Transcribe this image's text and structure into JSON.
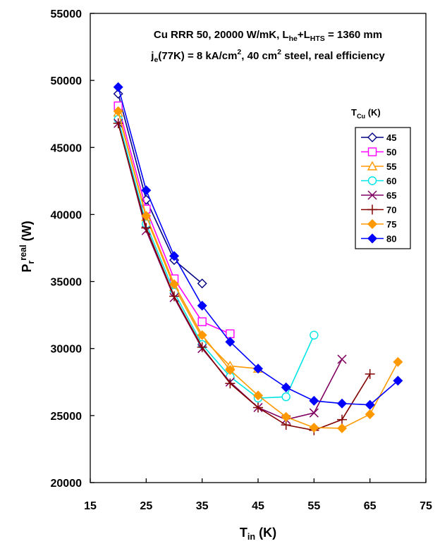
{
  "chart_data": {
    "type": "line",
    "title_lines": [
      {
        "parts": [
          {
            "t": "Cu RRR 50, 20000 W/mK, L",
            "s": "normal"
          },
          {
            "t": "he",
            "s": "sub"
          },
          {
            "t": "+L",
            "s": "normal"
          },
          {
            "t": "HTS",
            "s": "sub"
          },
          {
            "t": " = 1360 mm",
            "s": "normal"
          }
        ]
      },
      {
        "parts": [
          {
            "t": "j",
            "s": "normal"
          },
          {
            "t": "e",
            "s": "sub"
          },
          {
            "t": "(77K) = 8 kA/cm",
            "s": "normal"
          },
          {
            "t": "2",
            "s": "sup"
          },
          {
            "t": ", 40 cm",
            "s": "normal"
          },
          {
            "t": "2",
            "s": "sup"
          },
          {
            "t": " steel, real efficiency",
            "s": "normal"
          }
        ]
      }
    ],
    "xlabel": {
      "parts": [
        {
          "t": "T",
          "s": "normal"
        },
        {
          "t": "in",
          "s": "sub"
        },
        {
          "t": " (K)",
          "s": "normal"
        }
      ]
    },
    "ylabel": {
      "parts": [
        {
          "t": "P",
          "s": "normal"
        },
        {
          "t": "r",
          "s": "sub"
        },
        {
          "t": "real",
          "s": "sup"
        },
        {
          "t": " (W)",
          "s": "normal"
        }
      ]
    },
    "xlim": [
      15,
      75
    ],
    "ylim": [
      20000,
      55000
    ],
    "xticks": [
      15,
      25,
      35,
      45,
      55,
      65,
      75
    ],
    "xtick_labels": [
      "15",
      "25",
      "35",
      "45",
      "55",
      "65",
      "75"
    ],
    "yticks": [
      20000,
      25000,
      30000,
      35000,
      40000,
      45000,
      50000,
      55000
    ],
    "ytick_labels": [
      "20000",
      "25000",
      "30000",
      "35000",
      "40000",
      "45000",
      "50000",
      "55000"
    ],
    "grid": false,
    "legend": {
      "title": {
        "parts": [
          {
            "t": "T",
            "s": "normal"
          },
          {
            "t": "Cu",
            "s": "sub"
          },
          {
            "t": " (K)",
            "s": "normal"
          }
        ]
      },
      "placement": "right"
    },
    "series": [
      {
        "name": "45",
        "color": "#000080",
        "marker": "diamond-open",
        "x": [
          20,
          25,
          30,
          35
        ],
        "y": [
          49000,
          41100,
          36600,
          34850
        ]
      },
      {
        "name": "50",
        "color": "#ff00ff",
        "marker": "square-open",
        "x": [
          20,
          25,
          30,
          35,
          40
        ],
        "y": [
          48100,
          40400,
          35200,
          32000,
          31100
        ]
      },
      {
        "name": "55",
        "color": "#ff9900",
        "marker": "triangle-open",
        "x": [
          20,
          25,
          30,
          35,
          40,
          45
        ],
        "y": [
          47600,
          39800,
          34600,
          30800,
          28700,
          28500
        ]
      },
      {
        "name": "60",
        "color": "#00e5e5",
        "marker": "circle-open",
        "x": [
          20,
          25,
          30,
          35,
          40,
          45,
          50,
          55
        ],
        "y": [
          47100,
          39300,
          34200,
          30300,
          27900,
          26300,
          26400,
          31000
        ]
      },
      {
        "name": "65",
        "color": "#800060",
        "marker": "x",
        "x": [
          20,
          25,
          30,
          35,
          40,
          45,
          50,
          55,
          60
        ],
        "y": [
          46800,
          38800,
          33800,
          30000,
          27500,
          25600,
          24700,
          25200,
          29200
        ]
      },
      {
        "name": "70",
        "color": "#800000",
        "marker": "plus",
        "x": [
          20,
          25,
          30,
          35,
          40,
          45,
          50,
          55,
          60,
          65
        ],
        "y": [
          46800,
          39000,
          33900,
          30100,
          27400,
          25600,
          24300,
          23900,
          24700,
          28100
        ]
      },
      {
        "name": "75",
        "color": "#ff9900",
        "marker": "diamond-filled",
        "x": [
          20,
          25,
          30,
          35,
          40,
          45,
          50,
          55,
          60,
          65,
          70
        ],
        "y": [
          47700,
          39900,
          34800,
          31000,
          28400,
          26500,
          24900,
          24100,
          24050,
          25100,
          29000
        ]
      },
      {
        "name": "80",
        "color": "#0000ff",
        "marker": "diamond-filled",
        "x": [
          20,
          25,
          30,
          35,
          40,
          45,
          50,
          55,
          60,
          65,
          70
        ],
        "y": [
          49500,
          41800,
          36900,
          33200,
          30500,
          28500,
          27100,
          26100,
          25900,
          25800,
          27600
        ]
      }
    ]
  }
}
